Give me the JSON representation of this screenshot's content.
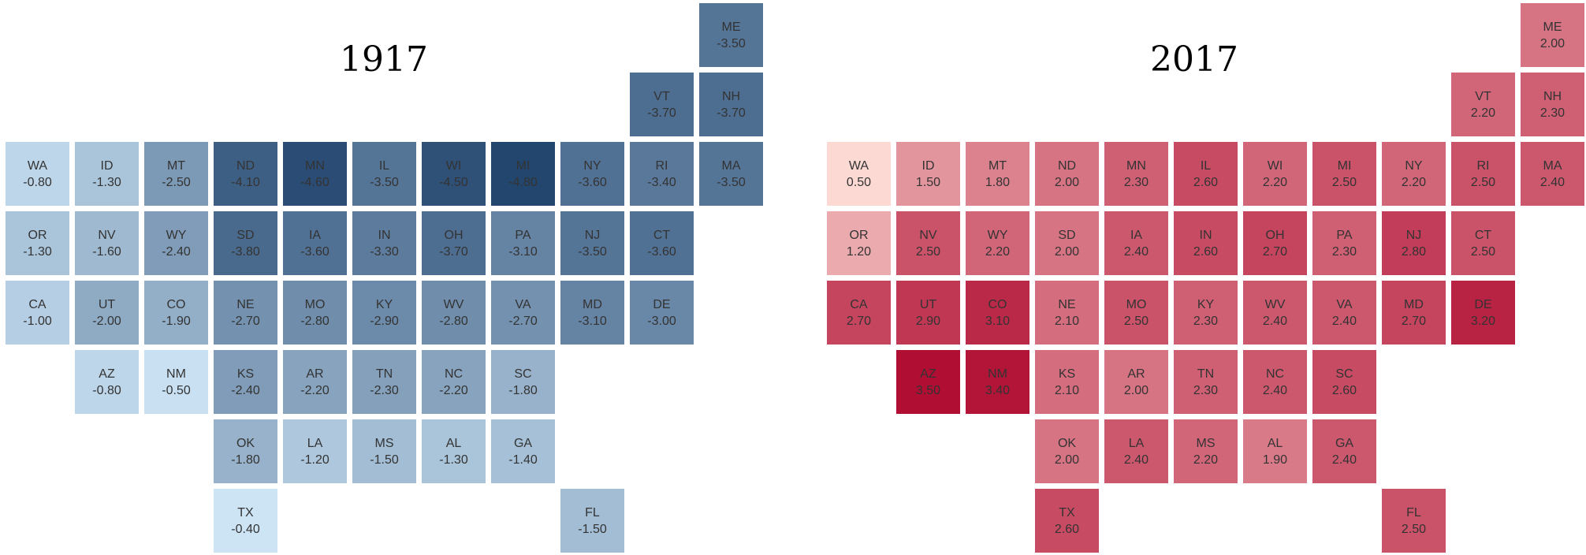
{
  "chart_data": [
    {
      "type": "heatmap",
      "subtype": "tile-grid-map",
      "title": "1917",
      "color_scheme": "blues",
      "palette": {
        "low": "#cde4f5",
        "high": "#23466f"
      },
      "states": [
        {
          "code": "ME",
          "label": "-3.50",
          "value": -3.5
        },
        {
          "code": "VT",
          "label": "-3.70",
          "value": -3.7
        },
        {
          "code": "NH",
          "label": "-3.70",
          "value": -3.7
        },
        {
          "code": "WA",
          "label": "-0.80",
          "value": -0.8
        },
        {
          "code": "ID",
          "label": "-1.30",
          "value": -1.3
        },
        {
          "code": "MT",
          "label": "-2.50",
          "value": -2.5
        },
        {
          "code": "ND",
          "label": "-4.10",
          "value": -4.1
        },
        {
          "code": "MN",
          "label": "-4.60",
          "value": -4.6
        },
        {
          "code": "IL",
          "label": "-3.50",
          "value": -3.5
        },
        {
          "code": "WI",
          "label": "-4.50",
          "value": -4.5
        },
        {
          "code": "MI",
          "label": "-4.80",
          "value": -4.8
        },
        {
          "code": "NY",
          "label": "-3.60",
          "value": -3.6
        },
        {
          "code": "RI",
          "label": "-3.40",
          "value": -3.4
        },
        {
          "code": "MA",
          "label": "-3.50",
          "value": -3.5
        },
        {
          "code": "OR",
          "label": "-1.30",
          "value": -1.3
        },
        {
          "code": "NV",
          "label": "-1.60",
          "value": -1.6
        },
        {
          "code": "WY",
          "label": "-2.40",
          "value": -2.4
        },
        {
          "code": "SD",
          "label": "-3.80",
          "value": -3.8
        },
        {
          "code": "IA",
          "label": "-3.60",
          "value": -3.6
        },
        {
          "code": "IN",
          "label": "-3.30",
          "value": -3.3
        },
        {
          "code": "OH",
          "label": "-3.70",
          "value": -3.7
        },
        {
          "code": "PA",
          "label": "-3.10",
          "value": -3.1
        },
        {
          "code": "NJ",
          "label": "-3.50",
          "value": -3.5
        },
        {
          "code": "CT",
          "label": "-3.60",
          "value": -3.6
        },
        {
          "code": "CA",
          "label": "-1.00",
          "value": -1.0
        },
        {
          "code": "UT",
          "label": "-2.00",
          "value": -2.0
        },
        {
          "code": "CO",
          "label": "-1.90",
          "value": -1.9
        },
        {
          "code": "NE",
          "label": "-2.70",
          "value": -2.7
        },
        {
          "code": "MO",
          "label": "-2.80",
          "value": -2.8
        },
        {
          "code": "KY",
          "label": "-2.90",
          "value": -2.9
        },
        {
          "code": "WV",
          "label": "-2.80",
          "value": -2.8
        },
        {
          "code": "VA",
          "label": "-2.70",
          "value": -2.7
        },
        {
          "code": "MD",
          "label": "-3.10",
          "value": -3.1
        },
        {
          "code": "DE",
          "label": "-3.00",
          "value": -3.0
        },
        {
          "code": "AZ",
          "label": "-0.80",
          "value": -0.8
        },
        {
          "code": "NM",
          "label": "-0.50",
          "value": -0.5
        },
        {
          "code": "KS",
          "label": "-2.40",
          "value": -2.4
        },
        {
          "code": "AR",
          "label": "-2.20",
          "value": -2.2
        },
        {
          "code": "TN",
          "label": "-2.30",
          "value": -2.3
        },
        {
          "code": "NC",
          "label": "-2.20",
          "value": -2.2
        },
        {
          "code": "SC",
          "label": "-1.80",
          "value": -1.8
        },
        {
          "code": "OK",
          "label": "-1.80",
          "value": -1.8
        },
        {
          "code": "LA",
          "label": "-1.20",
          "value": -1.2
        },
        {
          "code": "MS",
          "label": "-1.50",
          "value": -1.5
        },
        {
          "code": "AL",
          "label": "-1.30",
          "value": -1.3
        },
        {
          "code": "GA",
          "label": "-1.40",
          "value": -1.4
        },
        {
          "code": "TX",
          "label": "-0.40",
          "value": -0.4
        },
        {
          "code": "FL",
          "label": "-1.50",
          "value": -1.5
        }
      ]
    },
    {
      "type": "heatmap",
      "subtype": "tile-grid-map",
      "title": "2017",
      "color_scheme": "reds",
      "palette": {
        "low": "#fdd9d4",
        "high": "#b00e33"
      },
      "states": [
        {
          "code": "ME",
          "label": "2.00",
          "value": 2.0
        },
        {
          "code": "VT",
          "label": "2.20",
          "value": 2.2
        },
        {
          "code": "NH",
          "label": "2.30",
          "value": 2.3
        },
        {
          "code": "WA",
          "label": "0.50",
          "value": 0.5
        },
        {
          "code": "ID",
          "label": "1.50",
          "value": 1.5
        },
        {
          "code": "MT",
          "label": "1.80",
          "value": 1.8
        },
        {
          "code": "ND",
          "label": "2.00",
          "value": 2.0
        },
        {
          "code": "MN",
          "label": "2.30",
          "value": 2.3
        },
        {
          "code": "IL",
          "label": "2.60",
          "value": 2.6
        },
        {
          "code": "WI",
          "label": "2.20",
          "value": 2.2
        },
        {
          "code": "MI",
          "label": "2.50",
          "value": 2.5
        },
        {
          "code": "NY",
          "label": "2.20",
          "value": 2.2
        },
        {
          "code": "RI",
          "label": "2.50",
          "value": 2.5
        },
        {
          "code": "MA",
          "label": "2.40",
          "value": 2.4
        },
        {
          "code": "OR",
          "label": "1.20",
          "value": 1.2
        },
        {
          "code": "NV",
          "label": "2.50",
          "value": 2.5
        },
        {
          "code": "WY",
          "label": "2.20",
          "value": 2.2
        },
        {
          "code": "SD",
          "label": "2.00",
          "value": 2.0
        },
        {
          "code": "IA",
          "label": "2.40",
          "value": 2.4
        },
        {
          "code": "IN",
          "label": "2.60",
          "value": 2.6
        },
        {
          "code": "OH",
          "label": "2.70",
          "value": 2.7
        },
        {
          "code": "PA",
          "label": "2.30",
          "value": 2.3
        },
        {
          "code": "NJ",
          "label": "2.80",
          "value": 2.8
        },
        {
          "code": "CT",
          "label": "2.50",
          "value": 2.5
        },
        {
          "code": "CA",
          "label": "2.70",
          "value": 2.7
        },
        {
          "code": "UT",
          "label": "2.90",
          "value": 2.9
        },
        {
          "code": "CO",
          "label": "3.10",
          "value": 3.1
        },
        {
          "code": "NE",
          "label": "2.10",
          "value": 2.1
        },
        {
          "code": "MO",
          "label": "2.50",
          "value": 2.5
        },
        {
          "code": "KY",
          "label": "2.30",
          "value": 2.3
        },
        {
          "code": "WV",
          "label": "2.40",
          "value": 2.4
        },
        {
          "code": "VA",
          "label": "2.40",
          "value": 2.4
        },
        {
          "code": "MD",
          "label": "2.70",
          "value": 2.7
        },
        {
          "code": "DE",
          "label": "3.20",
          "value": 3.2
        },
        {
          "code": "AZ",
          "label": "3.50",
          "value": 3.5
        },
        {
          "code": "NM",
          "label": "3.40",
          "value": 3.4
        },
        {
          "code": "KS",
          "label": "2.10",
          "value": 2.1
        },
        {
          "code": "AR",
          "label": "2.00",
          "value": 2.0
        },
        {
          "code": "TN",
          "label": "2.30",
          "value": 2.3
        },
        {
          "code": "NC",
          "label": "2.40",
          "value": 2.4
        },
        {
          "code": "SC",
          "label": "2.60",
          "value": 2.6
        },
        {
          "code": "OK",
          "label": "2.00",
          "value": 2.0
        },
        {
          "code": "LA",
          "label": "2.40",
          "value": 2.4
        },
        {
          "code": "MS",
          "label": "2.20",
          "value": 2.2
        },
        {
          "code": "AL",
          "label": "1.90",
          "value": 1.9
        },
        {
          "code": "GA",
          "label": "2.40",
          "value": 2.4
        },
        {
          "code": "TX",
          "label": "2.60",
          "value": 2.6
        },
        {
          "code": "FL",
          "label": "2.50",
          "value": 2.5
        }
      ]
    }
  ]
}
